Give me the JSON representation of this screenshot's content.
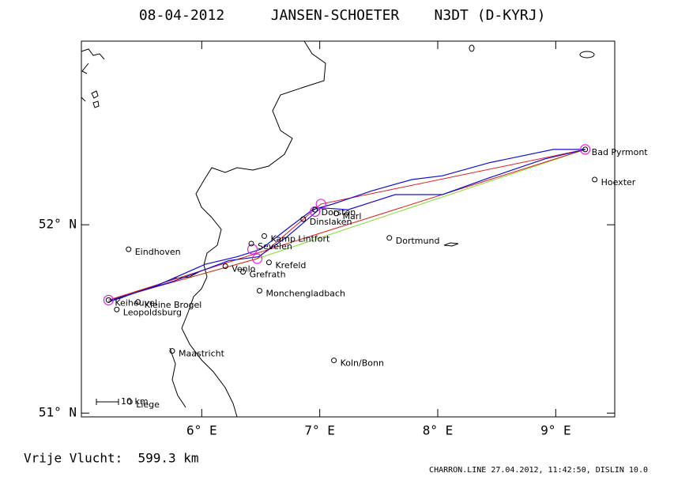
{
  "header": {
    "date": "08-04-2012",
    "pilot": "JANSEN-SCHOETER",
    "glider": "N3DT (D-KYRJ)"
  },
  "map": {
    "xlim": [
      4.98,
      9.5
    ],
    "ylim": [
      50.98,
      52.975
    ],
    "xticks": [
      {
        "value": 6,
        "label": "6° E"
      },
      {
        "value": 7,
        "label": "7° E"
      },
      {
        "value": 8,
        "label": "8° E"
      },
      {
        "value": 9,
        "label": "9° E"
      }
    ],
    "yticks": [
      {
        "value": 51,
        "label": "51° N"
      },
      {
        "value": 52,
        "label": "52° N"
      }
    ],
    "places": [
      {
        "name": "Eindhoven",
        "lon": 5.38,
        "lat": 51.87
      },
      {
        "name": "Keiheuvel",
        "lon": 5.21,
        "lat": 51.6
      },
      {
        "name": "Kleine Brogel",
        "lon": 5.46,
        "lat": 51.59
      },
      {
        "name": "Leopoldsburg",
        "lon": 5.28,
        "lat": 51.55
      },
      {
        "name": "Maastricht",
        "lon": 5.75,
        "lat": 51.33
      },
      {
        "name": "Liege",
        "lon": 5.39,
        "lat": 51.06
      },
      {
        "name": "Venlo",
        "lon": 6.2,
        "lat": 51.78
      },
      {
        "name": "Grefrath",
        "lon": 6.35,
        "lat": 51.75
      },
      {
        "name": "Krefeld",
        "lon": 6.57,
        "lat": 51.8
      },
      {
        "name": "Kamp Lintfort",
        "lon": 6.53,
        "lat": 51.94
      },
      {
        "name": "Sevelen",
        "lon": 6.42,
        "lat": 51.9
      },
      {
        "name": "Monchengladbach",
        "lon": 6.49,
        "lat": 51.65
      },
      {
        "name": "Dinslaken",
        "lon": 6.86,
        "lat": 52.03
      },
      {
        "name": "Dorsten",
        "lon": 6.96,
        "lat": 52.08
      },
      {
        "name": "Marl",
        "lon": 7.14,
        "lat": 52.06
      },
      {
        "name": "Dortmund",
        "lon": 7.59,
        "lat": 51.93
      },
      {
        "name": "Koln/Bonn",
        "lon": 7.12,
        "lat": 51.28
      },
      {
        "name": "Bad Pyrmont",
        "lon": 9.25,
        "lat": 52.4
      },
      {
        "name": "Hoexter",
        "lon": 9.33,
        "lat": 52.24
      }
    ],
    "turnpoints": {
      "lon": [
        5.21,
        9.25,
        7.01,
        6.96,
        6.47,
        6.43
      ],
      "lat": [
        51.6,
        52.4,
        52.11,
        52.07,
        51.82,
        51.87
      ],
      "color": "#e020e0"
    },
    "task": {
      "lon": [
        5.21,
        9.25,
        7.01,
        6.47,
        5.21
      ],
      "lat": [
        51.6,
        52.4,
        52.11,
        51.82,
        51.6
      ],
      "color": "#e02020"
    },
    "direct": {
      "lon": [
        5.21,
        6.47,
        9.25
      ],
      "lat": [
        51.6,
        51.82,
        52.4
      ],
      "color": "#80e020"
    },
    "track": {
      "color": "#1010d0",
      "lon": [
        5.21,
        5.63,
        6.03,
        6.3,
        6.5,
        6.77,
        6.94,
        7.11,
        7.44,
        7.78,
        8.04,
        8.44,
        8.98,
        9.25,
        8.91,
        8.44,
        8.04,
        7.64,
        7.24,
        7.01,
        6.71,
        6.48,
        6.23,
        5.76,
        5.23
      ],
      "lat": [
        51.59,
        51.68,
        51.79,
        51.83,
        51.87,
        52.0,
        52.08,
        52.11,
        52.18,
        52.24,
        52.26,
        52.33,
        52.4,
        52.4,
        52.35,
        52.25,
        52.16,
        52.16,
        52.08,
        52.09,
        51.93,
        51.83,
        51.81,
        51.7,
        51.6
      ]
    },
    "scale_label": "10 km"
  },
  "footer": {
    "distance": "Vrije Vlucht:  599.3 km",
    "credit": "CHARRON.LINE 27.04.2012, 11:42:50, DISLIN 10.0"
  }
}
